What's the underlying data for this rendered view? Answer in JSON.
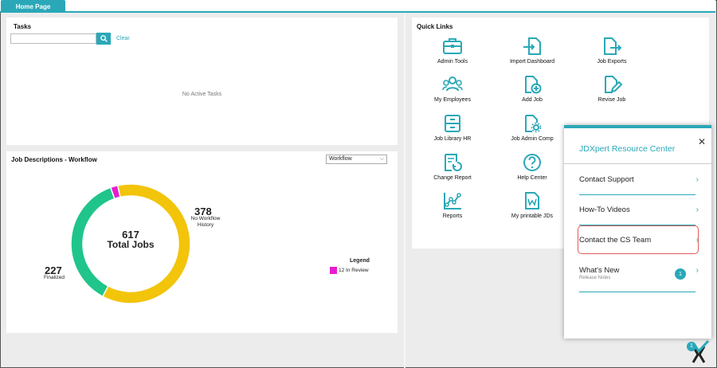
{
  "tabs": [
    {
      "label": "Home Page"
    }
  ],
  "tasks": {
    "title": "Tasks",
    "search_value": "",
    "clear_label": "Clear",
    "empty_text": "No Active Tasks"
  },
  "jobs": {
    "title": "Job Descriptions - Workflow",
    "select_value": "Workflow",
    "total_num": "617",
    "total_label": "Total Jobs",
    "no_workflow_num": "378",
    "no_workflow_label_1": "No Workflow",
    "no_workflow_label_2": "History",
    "finalized_num": "227",
    "finalized_label": "Finalized",
    "legend_title": "Legend",
    "legend_item": "12 In Review"
  },
  "chart_data": {
    "type": "pie",
    "categories": [
      "No Workflow History",
      "Finalized",
      "In Review"
    ],
    "values": [
      378,
      227,
      12
    ],
    "colors": [
      "#f2c40a",
      "#1fc58a",
      "#e81ccf"
    ],
    "title": "",
    "donut": true
  },
  "quick_links": {
    "title": "Quick Links",
    "items": [
      {
        "label": "Admin Tools",
        "icon": "briefcase-icon"
      },
      {
        "label": "Import Dashboard",
        "icon": "file-import-icon"
      },
      {
        "label": "Job Exports",
        "icon": "file-export-icon"
      },
      {
        "label": "My Employees",
        "icon": "users-icon"
      },
      {
        "label": "Add Job",
        "icon": "file-plus-icon"
      },
      {
        "label": "Revise Job",
        "icon": "file-edit-icon"
      },
      {
        "label": "Job Library HR",
        "icon": "cabinet-icon"
      },
      {
        "label": "Job Admin Comp",
        "icon": "file-gear-icon"
      },
      {
        "label": "Change Report",
        "icon": "report-refresh-icon"
      },
      {
        "label": "Help Center",
        "icon": "help-icon"
      },
      {
        "label": "Reports",
        "icon": "chart-line-icon"
      },
      {
        "label": "My printable JDs",
        "icon": "file-word-icon"
      }
    ]
  },
  "resource_center": {
    "title": "JDXpert Resource Center",
    "items": [
      {
        "label": "Contact Support"
      },
      {
        "label": "How-To Videos"
      },
      {
        "label": "Contact the CS Team"
      },
      {
        "label": "What's New"
      }
    ],
    "whats_new_sub": "Release Notes",
    "whats_new_badge": "1"
  },
  "logo_badge": "1",
  "colors": {
    "accent": "#2aa8b8",
    "highlight": "#e05a5a"
  }
}
